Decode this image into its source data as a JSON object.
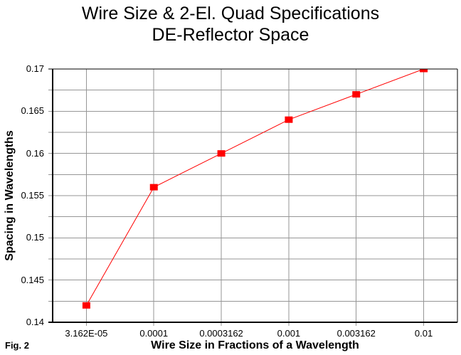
{
  "figure": {
    "title_line1": "Wire Size & 2-El. Quad Specifications",
    "title_line2": "DE-Reflector Space",
    "fig_label": "Fig. 2"
  },
  "chart_data": {
    "type": "line",
    "title": "Wire Size & 2-El. Quad Specifications DE-Reflector Space",
    "xlabel": "Wire Size in Fractions of a Wavelength",
    "ylabel": "Spacing in Wavelengths",
    "x_scale": "log",
    "x": [
      3.162e-05,
      0.0001,
      0.0003162,
      0.001,
      0.003162,
      0.01
    ],
    "y": [
      0.142,
      0.156,
      0.16,
      0.164,
      0.167,
      0.17
    ],
    "x_tick_labels": [
      "3.162E-05",
      "0.0001",
      "0.0003162",
      "0.001",
      "0.003162",
      "0.01"
    ],
    "y_ticks": [
      0.14,
      0.145,
      0.15,
      0.155,
      0.16,
      0.165,
      0.17
    ],
    "y_tick_labels": [
      "0.14",
      "0.145",
      "0.15",
      "0.155",
      "0.16",
      "0.165",
      "0.17"
    ],
    "y_minor_step": 0.0025,
    "ylim": [
      0.14,
      0.17
    ],
    "xlim": [
      1.77828e-05,
      0.0177828
    ],
    "grid": true,
    "legend": false,
    "marker": "square",
    "colors": {
      "line": "#FF0000",
      "marker": "#FF0000",
      "grid": "#969696",
      "axis": "#000000",
      "background": "#FFFFFF",
      "text": "#000000"
    }
  }
}
